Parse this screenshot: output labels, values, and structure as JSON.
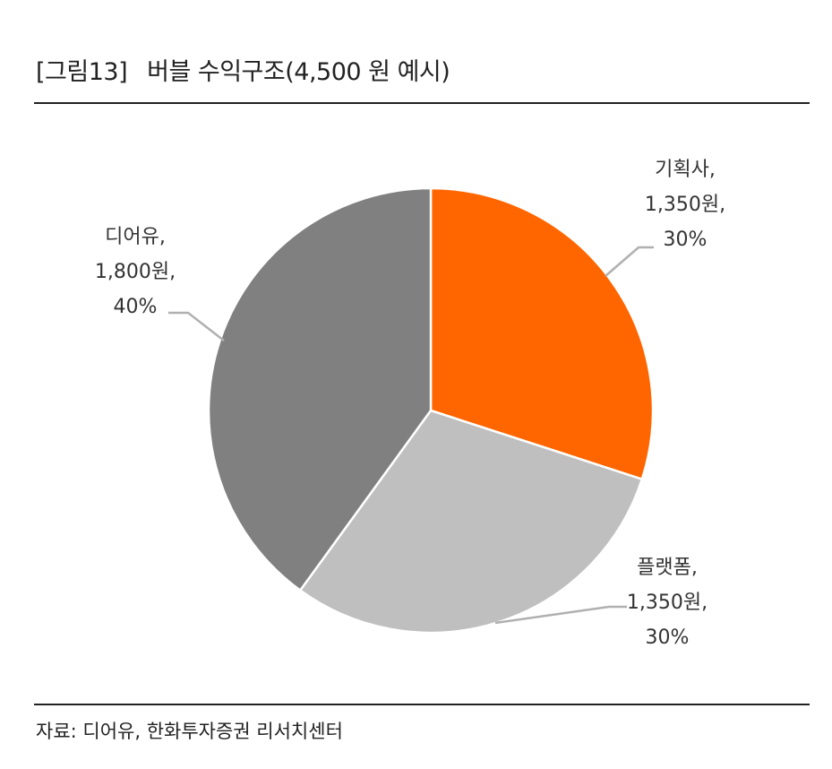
{
  "header": {
    "figure_number": "[그림13]",
    "title": "버블 수익구조(4,500 원 예시)"
  },
  "chart_data": {
    "type": "pie",
    "title": "버블 수익구조(4,500 원 예시)",
    "unit": "원",
    "total": 4500,
    "slices": [
      {
        "name": "기획사",
        "value": 1350,
        "percent": 30,
        "color": "#ff6600",
        "label_lines": [
          "기획사,",
          "1,350원,",
          "30%"
        ]
      },
      {
        "name": "플랫폼",
        "value": 1350,
        "percent": 30,
        "color": "#bfbfbf",
        "label_lines": [
          "플랫폼,",
          "1,350원,",
          "30%"
        ]
      },
      {
        "name": "디어유",
        "value": 1800,
        "percent": 40,
        "color": "#808080",
        "label_lines": [
          "디어유,",
          "1,800원,",
          "40%"
        ]
      }
    ]
  },
  "footer": {
    "source": "자료: 디어유, 한화투자증권 리서치센터"
  }
}
